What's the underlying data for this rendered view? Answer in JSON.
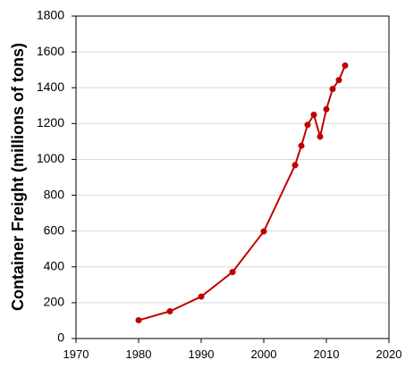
{
  "chart_data": {
    "type": "line",
    "title": "",
    "xlabel": "",
    "ylabel": "Container Freight (millions of tons)",
    "xlim": [
      1970,
      2020
    ],
    "ylim": [
      0,
      1800
    ],
    "x_ticks": [
      1970,
      1980,
      1990,
      2000,
      2010,
      2020
    ],
    "y_ticks": [
      0,
      200,
      400,
      600,
      800,
      1000,
      1200,
      1400,
      1600,
      1800
    ],
    "grid": "horizontal",
    "legend": "none",
    "series": [
      {
        "color": "#c00000",
        "x": [
          1980,
          1985,
          1990,
          1995,
          2000,
          2005,
          2006,
          2007,
          2008,
          2009,
          2010,
          2011,
          2012,
          2013
        ],
        "y": [
          102,
          152,
          234,
          371,
          598,
          968,
          1076,
          1193,
          1249,
          1127,
          1280,
          1393,
          1443,
          1524
        ]
      }
    ]
  }
}
